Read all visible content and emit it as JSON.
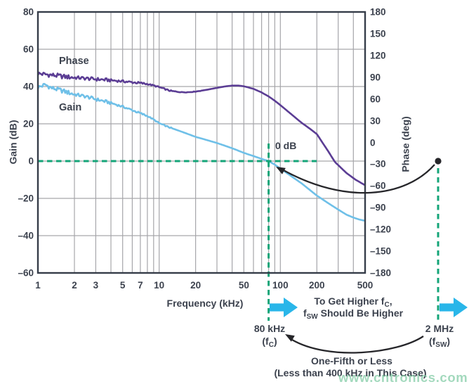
{
  "chart_data": {
    "type": "line",
    "title": "",
    "xlabel": "Frequency (kHz)",
    "ylabel_left": "Gain (dB)",
    "ylabel_right": "Phase (deg)",
    "x_scale": "log",
    "xlim": [
      1,
      500
    ],
    "ylim_left": [
      -60,
      80
    ],
    "ylim_right": [
      -180,
      180
    ],
    "grid": true,
    "x_ticks": [
      1,
      2,
      3,
      5,
      7,
      10,
      20,
      50,
      100,
      200,
      500
    ],
    "y_ticks_left": [
      80,
      60,
      40,
      20,
      0,
      -20,
      -40,
      -60
    ],
    "y_ticks_right": [
      180,
      150,
      120,
      90,
      60,
      30,
      0,
      -30,
      -60,
      -90,
      -120,
      -150,
      -180
    ],
    "series": [
      {
        "name": "Phase",
        "axis": "right",
        "units": "deg",
        "color": "#5B3D94",
        "points": [
          [
            1,
            95
          ],
          [
            1.3,
            93
          ],
          [
            1.7,
            90.5
          ],
          [
            2,
            89.5
          ],
          [
            2.5,
            88.3
          ],
          [
            3,
            87.3
          ],
          [
            4,
            85.8
          ],
          [
            5,
            84.3
          ],
          [
            6,
            83
          ],
          [
            7,
            81.8
          ],
          [
            8,
            80.6
          ],
          [
            9,
            78.5
          ],
          [
            10,
            76.3
          ],
          [
            11,
            74
          ],
          [
            12,
            71.8
          ],
          [
            13,
            70.5
          ],
          [
            15,
            69.4
          ],
          [
            17,
            69.2
          ],
          [
            20,
            70.2
          ],
          [
            25,
            72.8
          ],
          [
            30,
            75.3
          ],
          [
            35,
            77.3
          ],
          [
            40,
            78.4
          ],
          [
            45,
            78.4
          ],
          [
            50,
            77.5
          ],
          [
            60,
            74
          ],
          [
            70,
            69
          ],
          [
            80,
            63.5
          ],
          [
            90,
            57.5
          ],
          [
            100,
            51.5
          ],
          [
            125,
            38
          ],
          [
            150,
            27
          ],
          [
            175,
            19
          ],
          [
            200,
            11.5
          ],
          [
            250,
            -13
          ],
          [
            282,
            -27
          ],
          [
            350,
            -42
          ],
          [
            414,
            -51
          ],
          [
            500,
            -59
          ]
        ]
      },
      {
        "name": "Gain",
        "axis": "left",
        "units": "dB",
        "color": "#6FC0E8",
        "points": [
          [
            1,
            39.5
          ],
          [
            1.15,
            41
          ],
          [
            1.3,
            39.2
          ],
          [
            1.5,
            38.2
          ],
          [
            2,
            35.8
          ],
          [
            2.5,
            34.6
          ],
          [
            3,
            33.2
          ],
          [
            4,
            31.2
          ],
          [
            5,
            29.2
          ],
          [
            6,
            27.3
          ],
          [
            7,
            25.6
          ],
          [
            8,
            24.2
          ],
          [
            9,
            22.3
          ],
          [
            10,
            20.3
          ],
          [
            12,
            18.2
          ],
          [
            15,
            16
          ],
          [
            20,
            13
          ],
          [
            25,
            11.2
          ],
          [
            30,
            9.7
          ],
          [
            40,
            6.9
          ],
          [
            50,
            4.4
          ],
          [
            60,
            2.7
          ],
          [
            70,
            1.2
          ],
          [
            80,
            0
          ],
          [
            90,
            -1.9
          ],
          [
            100,
            -4
          ],
          [
            120,
            -7.6
          ],
          [
            150,
            -12
          ],
          [
            200,
            -18.5
          ],
          [
            250,
            -22.7
          ],
          [
            300,
            -26
          ],
          [
            350,
            -28.7
          ],
          [
            400,
            -30.3
          ],
          [
            450,
            -31.4
          ],
          [
            500,
            -32
          ]
        ]
      }
    ],
    "guides": {
      "zero_db_line_gain_db": 0,
      "crossover_freq_khz": 80,
      "switching_freq_khz": 2000
    }
  },
  "annotations": {
    "zero_db": "0 dB",
    "fc": {
      "freq": "80 kHz",
      "pre": "(f",
      "sub": "C",
      "post": ")"
    },
    "fsw": {
      "freq": "2 MHz",
      "pre": "(f",
      "sub": "SW",
      "post": ")"
    },
    "note": {
      "l1a": "To Get Higher f",
      "l1sub": "C",
      "l1b": ",",
      "l2a": "f",
      "l2sub": "SW",
      "l2b": " Should Be Higher"
    },
    "ratio": {
      "l1": "One-Fifth or Less",
      "l2": "(Less than 400 kHz in This Case)"
    }
  },
  "watermark": "www.cntronics.com",
  "colors": {
    "phase": "#5B3D94",
    "gain": "#6FC0E8",
    "dashed_guide": "#14A578",
    "block_arrow": "#29B6E9",
    "text": "#3C424E",
    "grid": "#A6A6AA",
    "frame": "#363D49",
    "black_arrow": "#26262a",
    "watermark": "#7FCBA4"
  }
}
